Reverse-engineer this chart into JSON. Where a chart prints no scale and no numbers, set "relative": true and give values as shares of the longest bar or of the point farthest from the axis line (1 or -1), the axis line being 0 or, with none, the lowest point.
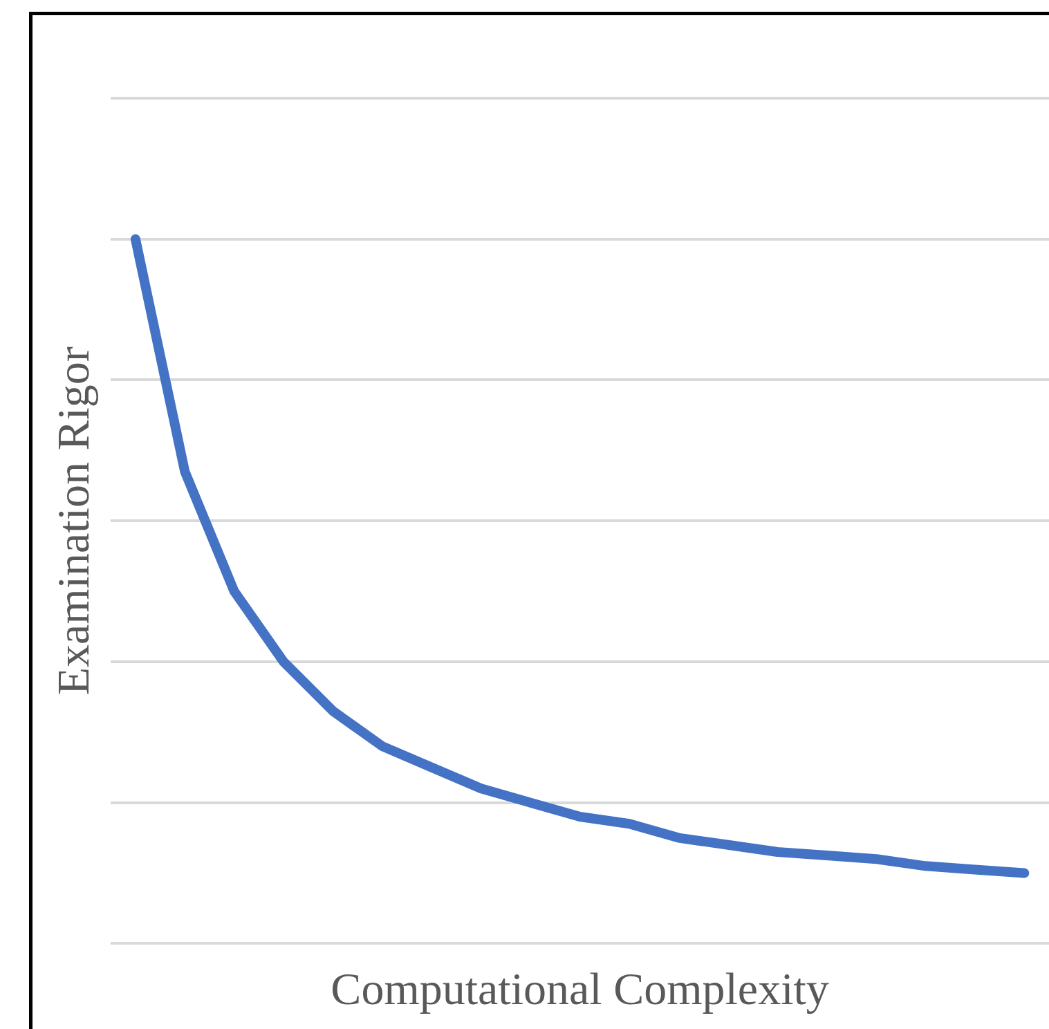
{
  "chart_data": {
    "type": "line",
    "xlabel": "Computational Complexity",
    "ylabel": "Examination Rigor",
    "relative": true,
    "grid": "y",
    "marker": "none",
    "line_style": "solid",
    "categories": [
      null,
      null,
      null,
      null,
      null,
      null,
      null,
      null,
      null,
      null,
      null,
      null,
      null,
      null,
      null,
      null,
      null,
      null,
      null
    ],
    "series": [
      {
        "color": "#4472c4",
        "values": [
          1.0,
          0.67,
          0.5,
          0.4,
          0.33,
          0.28,
          0.25,
          0.22,
          0.2,
          0.18,
          0.17,
          0.15,
          0.14,
          0.13,
          0.125,
          0.12,
          0.11,
          0.105,
          0.1
        ]
      }
    ]
  }
}
